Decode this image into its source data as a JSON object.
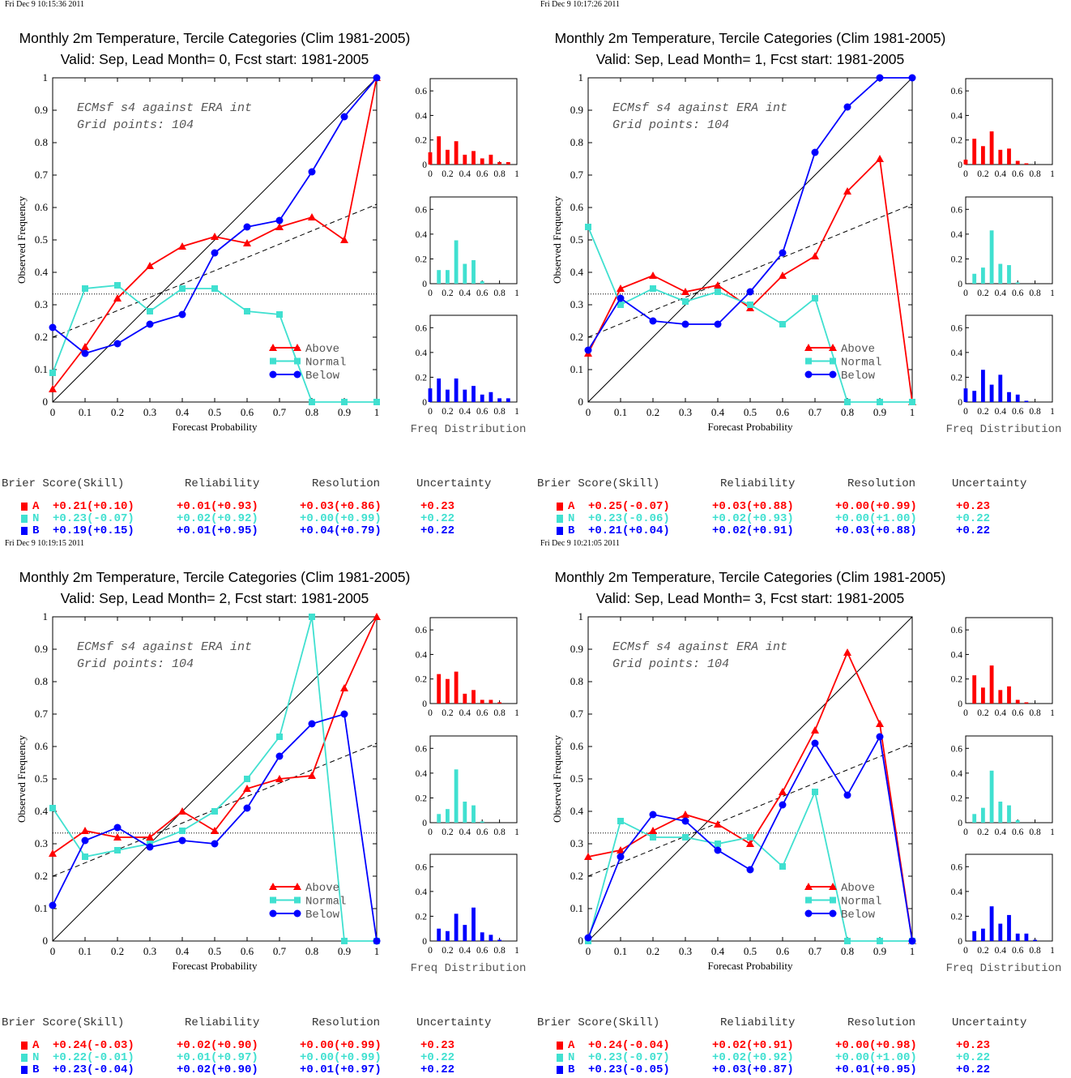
{
  "labels": {
    "xlabel": "Forecast Probability",
    "ylabel": "Observed Frequency",
    "freq_label": "Freq Distribution",
    "annotation_line1": "ECMsf s4 against ERA int",
    "annotation_line2": "Grid points:  104",
    "legend": [
      "Above",
      "Normal",
      "Below"
    ],
    "score_headers": [
      "Brier Score(Skill)",
      "Reliability",
      "Resolution",
      "Uncertainty"
    ],
    "category_letters": [
      "A",
      "N",
      "B"
    ]
  },
  "colors": {
    "above": "#ff0000",
    "normal": "#40e0d0",
    "below": "#0000ff"
  },
  "chart_data": [
    {
      "type": "line",
      "timestamp": "Fri Dec  9 10:15:36 2011",
      "title": "Monthly 2m Temperature, Tercile Categories (Clim 1981-2005)",
      "subtitle": "Valid: Sep, Lead Month= 0, Fcst start: 1981-2005",
      "x": [
        0,
        0.1,
        0.2,
        0.3,
        0.4,
        0.5,
        0.6,
        0.7,
        0.8,
        0.9,
        1
      ],
      "xlim": [
        0,
        1
      ],
      "ylim": [
        0,
        1
      ],
      "series": [
        {
          "name": "Above",
          "values": [
            0.04,
            0.17,
            0.32,
            0.42,
            0.48,
            0.51,
            0.49,
            0.54,
            0.57,
            0.5,
            1.0
          ]
        },
        {
          "name": "Normal",
          "values": [
            0.09,
            0.35,
            0.36,
            0.28,
            0.35,
            0.35,
            0.28,
            0.27,
            0.0,
            0.0,
            0.0
          ]
        },
        {
          "name": "Below",
          "values": [
            0.23,
            0.15,
            0.18,
            0.24,
            0.27,
            0.46,
            0.54,
            0.56,
            0.71,
            0.88,
            1.0
          ]
        }
      ],
      "reference": {
        "climatology": 0.333,
        "skill_line": [
          [
            0,
            0.2
          ],
          [
            1,
            0.61
          ]
        ]
      },
      "histograms": {
        "x": [
          0,
          0.1,
          0.2,
          0.3,
          0.4,
          0.5,
          0.6,
          0.7,
          0.8,
          0.9,
          1
        ],
        "ylim": [
          0,
          0.7
        ],
        "above": [
          0.1,
          0.23,
          0.12,
          0.19,
          0.08,
          0.11,
          0.05,
          0.08,
          0.02,
          0.02,
          0
        ],
        "normal": [
          0,
          0.11,
          0.11,
          0.35,
          0.16,
          0.19,
          0.02,
          0,
          0,
          0,
          0
        ],
        "below": [
          0.11,
          0.19,
          0.1,
          0.19,
          0.1,
          0.13,
          0.06,
          0.08,
          0.03,
          0.03,
          0
        ]
      },
      "scores": [
        {
          "bs": "+0.21(+0.10)",
          "rel": "+0.01(+0.93)",
          "res": "+0.03(+0.86)",
          "unc": "+0.23"
        },
        {
          "bs": "+0.23(-0.07)",
          "rel": "+0.02(+0.92)",
          "res": "+0.00(+0.99)",
          "unc": "+0.22"
        },
        {
          "bs": "+0.19(+0.15)",
          "rel": "+0.01(+0.95)",
          "res": "+0.04(+0.79)",
          "unc": "+0.22"
        }
      ]
    },
    {
      "type": "line",
      "timestamp": "Fri Dec  9 10:17:26 2011",
      "title": "Monthly 2m Temperature, Tercile Categories (Clim 1981-2005)",
      "subtitle": "Valid: Sep, Lead Month= 1, Fcst start: 1981-2005",
      "x": [
        0,
        0.1,
        0.2,
        0.3,
        0.4,
        0.5,
        0.6,
        0.7,
        0.8,
        0.9,
        1
      ],
      "xlim": [
        0,
        1
      ],
      "ylim": [
        0,
        1
      ],
      "series": [
        {
          "name": "Above",
          "values": [
            0.15,
            0.35,
            0.39,
            0.34,
            0.36,
            0.29,
            0.39,
            0.45,
            0.65,
            0.75,
            0.0
          ]
        },
        {
          "name": "Normal",
          "values": [
            0.54,
            0.3,
            0.35,
            0.31,
            0.34,
            0.3,
            0.24,
            0.32,
            0.0,
            0.0,
            0.0
          ]
        },
        {
          "name": "Below",
          "values": [
            0.16,
            0.32,
            0.25,
            0.24,
            0.24,
            0.34,
            0.46,
            0.77,
            0.91,
            1.0,
            1.0
          ]
        }
      ],
      "reference": {
        "climatology": 0.333,
        "skill_line": [
          [
            0,
            0.2
          ],
          [
            1,
            0.61
          ]
        ]
      },
      "histograms": {
        "x": [
          0,
          0.1,
          0.2,
          0.3,
          0.4,
          0.5,
          0.6,
          0.7,
          0.8,
          0.9,
          1
        ],
        "ylim": [
          0,
          0.7
        ],
        "above": [
          0.04,
          0.21,
          0.15,
          0.27,
          0.12,
          0.13,
          0.03,
          0.01,
          0,
          0,
          0
        ],
        "normal": [
          0,
          0.08,
          0.13,
          0.43,
          0.16,
          0.15,
          0.01,
          0,
          0,
          0,
          0
        ],
        "below": [
          0.11,
          0.09,
          0.26,
          0.14,
          0.22,
          0.08,
          0.06,
          0.01,
          0,
          0,
          0
        ]
      },
      "scores": [
        {
          "bs": "+0.25(-0.07)",
          "rel": "+0.03(+0.88)",
          "res": "+0.00(+0.99)",
          "unc": "+0.23"
        },
        {
          "bs": "+0.23(-0.06)",
          "rel": "+0.02(+0.93)",
          "res": "+0.00(+1.00)",
          "unc": "+0.22"
        },
        {
          "bs": "+0.21(+0.04)",
          "rel": "+0.02(+0.91)",
          "res": "+0.03(+0.88)",
          "unc": "+0.22"
        }
      ]
    },
    {
      "type": "line",
      "timestamp": "Fri Dec  9 10:19:15 2011",
      "title": "Monthly 2m Temperature, Tercile Categories (Clim 1981-2005)",
      "subtitle": "Valid: Sep, Lead Month= 2, Fcst start: 1981-2005",
      "x": [
        0,
        0.1,
        0.2,
        0.3,
        0.4,
        0.5,
        0.6,
        0.7,
        0.8,
        0.9,
        1
      ],
      "xlim": [
        0,
        1
      ],
      "ylim": [
        0,
        1
      ],
      "series": [
        {
          "name": "Above",
          "values": [
            0.27,
            0.34,
            0.32,
            0.32,
            0.4,
            0.34,
            0.47,
            0.5,
            0.51,
            0.78,
            1.0
          ]
        },
        {
          "name": "Normal",
          "values": [
            0.41,
            0.26,
            0.28,
            0.3,
            0.34,
            0.4,
            0.5,
            0.63,
            1.0,
            0.0,
            0.0
          ]
        },
        {
          "name": "Below",
          "values": [
            0.11,
            0.31,
            0.35,
            0.29,
            0.31,
            0.3,
            0.41,
            0.57,
            0.67,
            0.7,
            0.0
          ]
        }
      ],
      "reference": {
        "climatology": 0.333,
        "skill_line": [
          [
            0,
            0.2
          ],
          [
            1,
            0.61
          ]
        ]
      },
      "histograms": {
        "x": [
          0,
          0.1,
          0.2,
          0.3,
          0.4,
          0.5,
          0.6,
          0.7,
          0.8,
          0.9,
          1
        ],
        "ylim": [
          0,
          0.7
        ],
        "above": [
          0,
          0.24,
          0.2,
          0.26,
          0.08,
          0.11,
          0.03,
          0.03,
          0.01,
          0,
          0
        ],
        "normal": [
          0,
          0.07,
          0.11,
          0.43,
          0.17,
          0.14,
          0.01,
          0,
          0,
          0,
          0
        ],
        "below": [
          0,
          0.1,
          0.08,
          0.22,
          0.13,
          0.27,
          0.07,
          0.05,
          0.01,
          0,
          0
        ]
      },
      "scores": [
        {
          "bs": "+0.24(-0.03)",
          "rel": "+0.02(+0.90)",
          "res": "+0.00(+0.99)",
          "unc": "+0.23"
        },
        {
          "bs": "+0.22(-0.01)",
          "rel": "+0.01(+0.97)",
          "res": "+0.00(+0.99)",
          "unc": "+0.22"
        },
        {
          "bs": "+0.23(-0.04)",
          "rel": "+0.02(+0.90)",
          "res": "+0.01(+0.97)",
          "unc": "+0.22"
        }
      ]
    },
    {
      "type": "line",
      "timestamp": "Fri Dec  9 10:21:05 2011",
      "title": "Monthly 2m Temperature, Tercile Categories (Clim 1981-2005)",
      "subtitle": "Valid: Sep, Lead Month= 3, Fcst start: 1981-2005",
      "x": [
        0,
        0.1,
        0.2,
        0.3,
        0.4,
        0.5,
        0.6,
        0.7,
        0.8,
        0.9,
        1
      ],
      "xlim": [
        0,
        1
      ],
      "ylim": [
        0,
        1
      ],
      "series": [
        {
          "name": "Above",
          "values": [
            0.26,
            0.28,
            0.34,
            0.39,
            0.36,
            0.3,
            0.46,
            0.65,
            0.89,
            0.67,
            0.0
          ]
        },
        {
          "name": "Normal",
          "values": [
            0.0,
            0.37,
            0.32,
            0.32,
            0.3,
            0.32,
            0.23,
            0.46,
            0.0,
            0.0,
            0.0
          ]
        },
        {
          "name": "Below",
          "values": [
            0.01,
            0.26,
            0.39,
            0.37,
            0.28,
            0.22,
            0.42,
            0.61,
            0.45,
            0.63,
            0.0
          ]
        }
      ],
      "reference": {
        "climatology": 0.333,
        "skill_line": [
          [
            0,
            0.2
          ],
          [
            1,
            0.61
          ]
        ]
      },
      "histograms": {
        "x": [
          0,
          0.1,
          0.2,
          0.3,
          0.4,
          0.5,
          0.6,
          0.7,
          0.8,
          0.9,
          1
        ],
        "ylim": [
          0,
          0.7
        ],
        "above": [
          0,
          0.23,
          0.13,
          0.31,
          0.11,
          0.14,
          0.03,
          0.01,
          0,
          0,
          0
        ],
        "normal": [
          0,
          0.07,
          0.12,
          0.42,
          0.17,
          0.14,
          0.02,
          0,
          0,
          0,
          0
        ],
        "below": [
          0,
          0.08,
          0.1,
          0.28,
          0.14,
          0.21,
          0.06,
          0.06,
          0.01,
          0,
          0
        ]
      },
      "scores": [
        {
          "bs": "+0.24(-0.04)",
          "rel": "+0.02(+0.91)",
          "res": "+0.00(+0.98)",
          "unc": "+0.23"
        },
        {
          "bs": "+0.23(-0.07)",
          "rel": "+0.02(+0.92)",
          "res": "+0.00(+1.00)",
          "unc": "+0.22"
        },
        {
          "bs": "+0.23(-0.05)",
          "rel": "+0.03(+0.87)",
          "res": "+0.01(+0.95)",
          "unc": "+0.22"
        }
      ]
    }
  ]
}
